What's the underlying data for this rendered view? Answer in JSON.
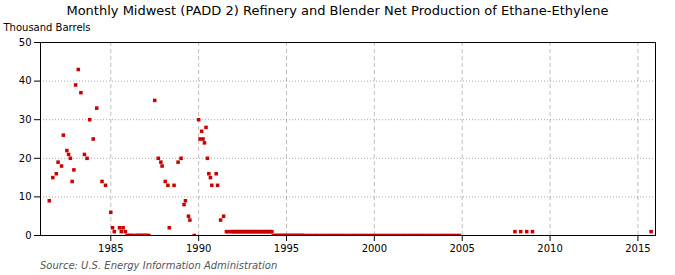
{
  "chart_data": {
    "type": "scatter",
    "title": "Monthly Midwest (PADD 2) Refinery and Blender Net Production of Ethane-Ethylene",
    "ylabel": "Thousand Barrels",
    "source": "Source: U.S. Energy Information Administration",
    "color": "#cc0000",
    "marker": "square",
    "grid": true,
    "xlim": [
      1981.0,
      2016.0
    ],
    "ylim": [
      0,
      50
    ],
    "xticks": [
      1985,
      1990,
      1995,
      2000,
      2005,
      2010,
      2015
    ],
    "yticks": [
      0,
      10,
      20,
      30,
      40,
      50
    ],
    "x": [
      1981.5,
      1981.7,
      1981.9,
      1982.0,
      1982.2,
      1982.3,
      1982.5,
      1982.6,
      1982.7,
      1982.8,
      1982.9,
      1983.0,
      1983.15,
      1983.3,
      1983.5,
      1983.65,
      1983.8,
      1984.0,
      1984.2,
      1984.5,
      1984.7,
      1985.0,
      1985.1,
      1985.2,
      1985.5,
      1985.6,
      1985.7,
      1985.83,
      1985.92,
      1986.0,
      1986.08,
      1986.17,
      1986.25,
      1986.42,
      1986.5,
      1986.58,
      1986.67,
      1986.75,
      1986.83,
      1986.92,
      1987.0,
      1987.08,
      1987.17,
      1987.5,
      1987.7,
      1987.85,
      1987.92,
      1988.1,
      1988.25,
      1988.33,
      1988.6,
      1988.83,
      1989.0,
      1989.17,
      1989.25,
      1989.42,
      1989.5,
      1989.75,
      1990.0,
      1990.08,
      1990.17,
      1990.25,
      1990.33,
      1990.42,
      1990.5,
      1990.58,
      1990.67,
      1990.75,
      1991.0,
      1991.08,
      1991.25,
      1991.42,
      1991.58,
      1991.67,
      1991.83,
      1991.92,
      1992.0,
      1992.08,
      1992.17,
      1992.25,
      1992.33,
      1992.42,
      1992.5,
      1992.58,
      1992.67,
      1992.75,
      1992.83,
      1992.92,
      1993.0,
      1993.08,
      1993.17,
      1993.25,
      1993.33,
      1993.42,
      1993.5,
      1993.58,
      1993.67,
      1993.75,
      1993.83,
      1993.92,
      1994.0,
      1994.08,
      1994.17,
      1994.25,
      1994.33,
      1994.42,
      1994.5,
      1994.58,
      1994.67,
      1994.75,
      1994.83,
      1994.92,
      1995.0,
      1995.08,
      1995.17,
      1995.25,
      1995.33,
      1995.42,
      1995.5,
      1995.58,
      1995.67,
      1995.75,
      1995.83,
      1995.92,
      1996.0,
      1996.17,
      1996.33,
      1996.5,
      1996.67,
      1996.83,
      1997.0,
      1997.17,
      1997.33,
      1997.5,
      1997.67,
      1997.83,
      1998.0,
      1998.17,
      1998.33,
      1998.5,
      1998.67,
      1998.83,
      1999.0,
      1999.17,
      1999.33,
      1999.5,
      1999.67,
      1999.83,
      2000.0,
      2000.17,
      2000.33,
      2000.5,
      2000.67,
      2000.83,
      2001.0,
      2001.17,
      2001.33,
      2001.5,
      2001.67,
      2001.83,
      2002.0,
      2002.17,
      2002.33,
      2002.5,
      2002.67,
      2002.83,
      2003.0,
      2003.17,
      2003.33,
      2003.5,
      2003.67,
      2003.83,
      2004.0,
      2004.17,
      2004.33,
      2004.5,
      2004.67,
      2004.83,
      2008.0,
      2008.33,
      2008.67,
      2009.0,
      2015.75
    ],
    "values": [
      9,
      15,
      16,
      19,
      18,
      26,
      22,
      21,
      20,
      14,
      17,
      39,
      43,
      37,
      21,
      20,
      30,
      25,
      33,
      14,
      13,
      6,
      2,
      1,
      2,
      1,
      2,
      1,
      0,
      0,
      0,
      0,
      0,
      0,
      0,
      0,
      0,
      0,
      0,
      0,
      0,
      0,
      0,
      35,
      20,
      19,
      18,
      14,
      13,
      2,
      13,
      19,
      20,
      8,
      9,
      5,
      4,
      0,
      30,
      25,
      27,
      25,
      24,
      28,
      20,
      16,
      15,
      13,
      16,
      13,
      4,
      5,
      1,
      1,
      1,
      1,
      1,
      1,
      1,
      1,
      1,
      1,
      1,
      1,
      1,
      1,
      1,
      1,
      1,
      1,
      1,
      1,
      1,
      1,
      1,
      1,
      1,
      1,
      1,
      1,
      1,
      1,
      1,
      0,
      0,
      0,
      0,
      0,
      0,
      0,
      0,
      0,
      0,
      0,
      0,
      0,
      0,
      0,
      0,
      0,
      0,
      0,
      0,
      0,
      0,
      0,
      0,
      0,
      0,
      0,
      0,
      0,
      0,
      0,
      0,
      0,
      0,
      0,
      0,
      0,
      0,
      0,
      0,
      0,
      0,
      0,
      0,
      0,
      0,
      0,
      0,
      0,
      0,
      0,
      0,
      0,
      0,
      0,
      0,
      0,
      0,
      0,
      0,
      0,
      0,
      0,
      0,
      0,
      0,
      0,
      0,
      0,
      0,
      0,
      0,
      0,
      0,
      0,
      1,
      1,
      1,
      1,
      1
    ]
  }
}
